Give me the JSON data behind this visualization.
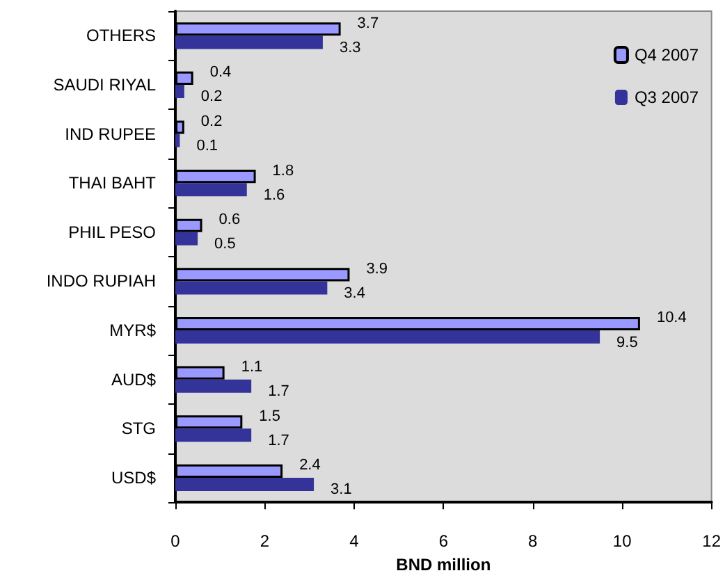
{
  "chart_data": {
    "type": "bar",
    "orientation": "horizontal",
    "xlabel": "BND million",
    "categories": [
      "OTHERS",
      "SAUDI RIYAL",
      "IND RUPEE",
      "THAI BAHT",
      "PHIL PESO",
      "INDO RUPIAH",
      "MYR$",
      "AUD$",
      "STG",
      "USD$"
    ],
    "series": [
      {
        "name": "Q4 2007",
        "color": "#9999ff",
        "values": [
          3.7,
          0.4,
          0.2,
          1.8,
          0.6,
          3.9,
          10.4,
          1.1,
          1.5,
          2.4
        ]
      },
      {
        "name": "Q3 2007",
        "color": "#333399",
        "values": [
          3.3,
          0.2,
          0.1,
          1.6,
          0.5,
          3.4,
          9.5,
          1.7,
          1.7,
          3.1
        ]
      }
    ],
    "xlim": [
      0,
      12
    ],
    "xticks": [
      0,
      2,
      4,
      6,
      8,
      10,
      12
    ],
    "data_labels": true,
    "legend": "top right",
    "grid": false
  }
}
